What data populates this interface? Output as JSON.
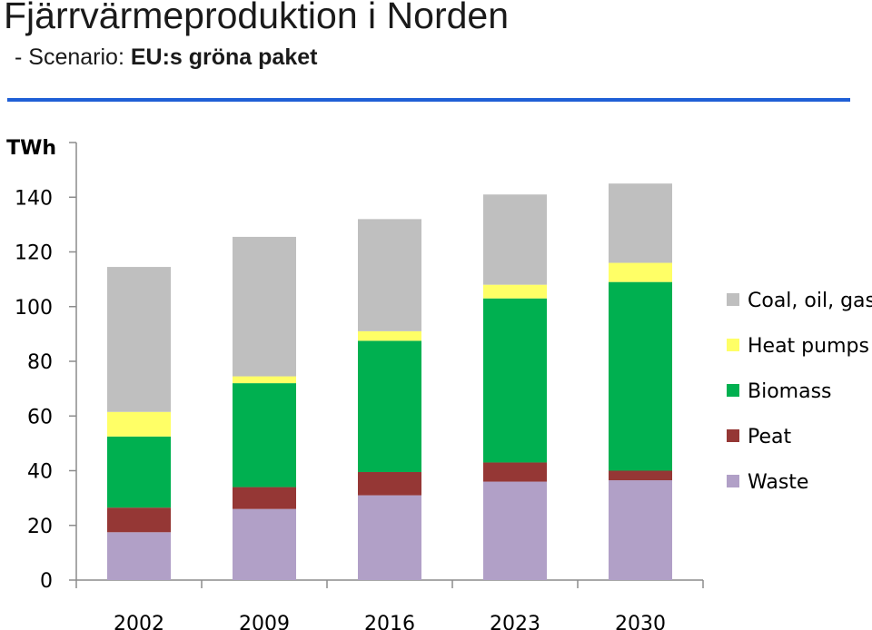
{
  "header": {
    "title": "Fjärrvärmeproduktion i Norden",
    "subtitle_prefix": "- Scenario: ",
    "subtitle_emphasis": "EU:s gröna paket"
  },
  "chart_data": {
    "type": "bar",
    "stacked": true,
    "ylabel": "TWh",
    "ylim": [
      0,
      160
    ],
    "yticks": [
      0,
      20,
      40,
      60,
      80,
      100,
      120,
      140
    ],
    "categories": [
      "2002",
      "2009",
      "2016",
      "2023",
      "2030"
    ],
    "series": [
      {
        "name": "Waste",
        "color": "#b1a0c7",
        "values": [
          17.5,
          26,
          31,
          36,
          36.5
        ]
      },
      {
        "name": "Peat",
        "color": "#953735",
        "values": [
          9,
          8,
          8.5,
          7,
          3.5
        ]
      },
      {
        "name": "Biomass",
        "color": "#00b050",
        "values": [
          26,
          38,
          48,
          60,
          69
        ]
      },
      {
        "name": "Heat pumps",
        "color": "#ffff66",
        "values": [
          9,
          2.5,
          3.5,
          5,
          7
        ]
      },
      {
        "name": "Coal, oil, gas",
        "color": "#bfbfbf",
        "values": [
          53,
          51,
          41,
          33,
          29
        ]
      }
    ],
    "legend_order": [
      "Coal, oil, gas",
      "Heat pumps",
      "Biomass",
      "Peat",
      "Waste"
    ],
    "legend_position": "right",
    "grid": false
  },
  "colors": {
    "rule": "#1f5fd6",
    "axis": "#8c8c8c"
  }
}
